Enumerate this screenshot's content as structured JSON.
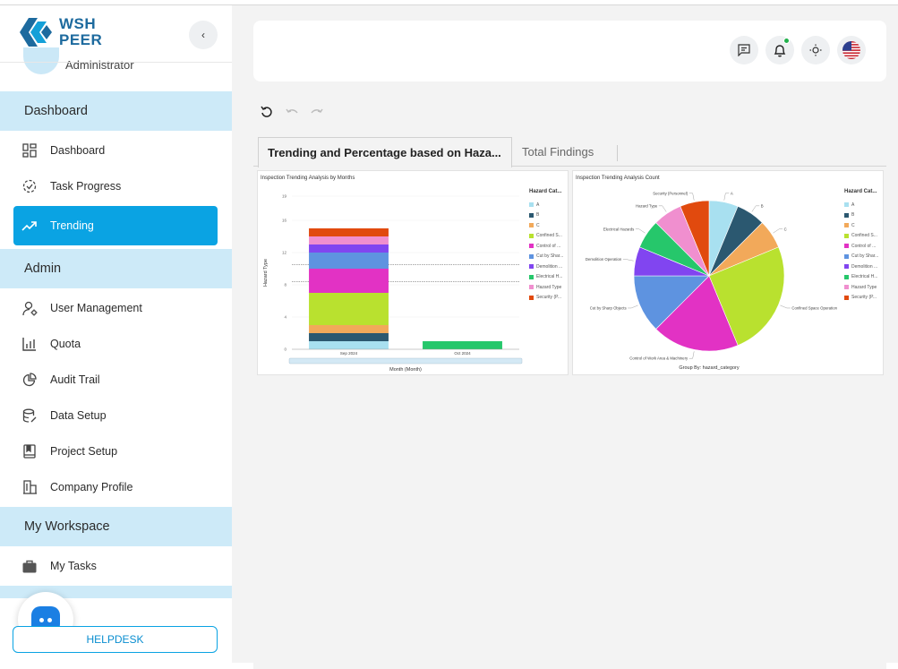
{
  "brand": {
    "line1": "WSH",
    "line2": "PEER",
    "accent": "#0aa3e3",
    "section_bg": "#cdeaf8"
  },
  "user": {
    "role": "Administrator"
  },
  "sidebar": {
    "collapse_label": "‹",
    "sections": [
      {
        "label": "Dashboard"
      },
      {
        "label": "Admin"
      },
      {
        "label": "My Workspace"
      }
    ],
    "items": [
      {
        "label": "Dashboard",
        "icon": "dashboard-grid-icon"
      },
      {
        "label": "Task Progress",
        "icon": "task-progress-icon"
      },
      {
        "label": "Trending",
        "icon": "trending-icon",
        "active": true
      },
      {
        "label": "User Management",
        "icon": "user-gear-icon"
      },
      {
        "label": "Quota",
        "icon": "bar-chart-icon"
      },
      {
        "label": "Audit Trail",
        "icon": "pie-chart-icon"
      },
      {
        "label": "Data Setup",
        "icon": "database-icon"
      },
      {
        "label": "Project Setup",
        "icon": "book-icon"
      },
      {
        "label": "Company Profile",
        "icon": "building-icon"
      },
      {
        "label": "My Tasks",
        "icon": "briefcase-icon"
      }
    ],
    "helpdesk_label": "HELPDESK"
  },
  "header": {
    "icons": [
      "message-icon",
      "bell-icon",
      "brightness-icon",
      "us-flag-icon"
    ]
  },
  "toolbar": {
    "icons": [
      "refresh-icon",
      "undo-icon",
      "redo-icon"
    ]
  },
  "tabs": [
    {
      "label": "Trending and Percentage based on Haza..."
    },
    {
      "label": "Total Findings"
    }
  ],
  "chart_data": [
    {
      "type": "bar",
      "title": "Inspection Trending Analysis by Months",
      "xlabel": "Month (Month)",
      "ylabel": "Hazard Type",
      "categories": [
        "Sep 2024",
        "Oct 2024"
      ],
      "yticks": [
        "0",
        "4",
        "8",
        "12",
        "16",
        "19"
      ],
      "ylim": [
        0,
        19
      ],
      "reference_lines": [
        8.4,
        10.5
      ],
      "legend_title": "Hazard Cat...",
      "series": [
        {
          "name": "A",
          "color": "#a8e0f0",
          "values": [
            1,
            0
          ]
        },
        {
          "name": "B",
          "color": "#2b5870",
          "values": [
            1,
            0
          ]
        },
        {
          "name": "C",
          "color": "#f2a95a",
          "values": [
            1,
            0
          ]
        },
        {
          "name": "Confined S...",
          "color": "#b9e12f",
          "values": [
            4,
            0
          ]
        },
        {
          "name": "Control of ...",
          "color": "#e232c4",
          "values": [
            3,
            0
          ]
        },
        {
          "name": "Cut by Shar...",
          "color": "#5e93e0",
          "values": [
            2,
            0
          ]
        },
        {
          "name": "Demolition ...",
          "color": "#8145f0",
          "values": [
            1,
            0
          ]
        },
        {
          "name": "Electrical H...",
          "color": "#26c76b",
          "values": [
            0,
            1
          ]
        },
        {
          "name": "Hazard Type",
          "color": "#f08fcf",
          "values": [
            1,
            0
          ]
        },
        {
          "name": "Security (P...",
          "color": "#e14a0e",
          "values": [
            1,
            0
          ]
        }
      ]
    },
    {
      "type": "pie",
      "title": "Inspection Trending Analysis Count",
      "footer": "Group By: hazard_category",
      "legend_title": "Hazard Cat...",
      "slices": [
        {
          "label": "A",
          "legend": "A",
          "value": 1,
          "color": "#a8e0f0"
        },
        {
          "label": "B",
          "legend": "B",
          "value": 1,
          "color": "#2b5870"
        },
        {
          "label": "C",
          "legend": "C",
          "value": 1,
          "color": "#f2a95a"
        },
        {
          "label": "Confined Space Operation",
          "legend": "Confined S...",
          "value": 4,
          "color": "#b9e12f"
        },
        {
          "label": "Control of Work Area & Machinery",
          "legend": "Control of ...",
          "value": 3,
          "color": "#e232c4"
        },
        {
          "label": "Cut by Sharp Objects",
          "legend": "Cut by Shar...",
          "value": 2,
          "color": "#5e93e0"
        },
        {
          "label": "Demolition Operation",
          "legend": "Demolition ...",
          "value": 1,
          "color": "#8145f0"
        },
        {
          "label": "Electrical Hazards",
          "legend": "Electrical H...",
          "value": 1,
          "color": "#26c76b"
        },
        {
          "label": "Hazard Type",
          "legend": "Hazard Type",
          "value": 1,
          "color": "#f08fcf"
        },
        {
          "label": "Security (Personnel)",
          "legend": "Security (P...",
          "value": 1,
          "color": "#e14a0e"
        }
      ]
    }
  ]
}
